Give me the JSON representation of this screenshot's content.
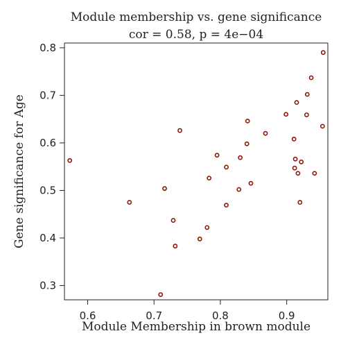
{
  "chart_data": {
    "type": "scatter",
    "title": "Module membership vs. gene significance",
    "subtitle": "cor = 0.58, p = 4e−04",
    "xlabel": "Module Membership in brown module",
    "ylabel": "Gene significance for Age",
    "xlim": [
      0.565,
      0.962
    ],
    "ylim": [
      0.27,
      0.81
    ],
    "xticks": [
      0.6,
      0.7,
      0.8,
      0.9
    ],
    "xtick_labels": [
      "0.6",
      "0.7",
      "0.8",
      "0.9"
    ],
    "yticks": [
      0.3,
      0.4,
      0.5,
      0.6,
      0.7,
      0.8
    ],
    "ytick_labels": [
      "0.3",
      "0.4",
      "0.5",
      "0.6",
      "0.7",
      "0.8"
    ],
    "grid": false,
    "marker_color": "#8B1A00",
    "points": [
      {
        "x": 0.573,
        "y": 0.563
      },
      {
        "x": 0.663,
        "y": 0.475
      },
      {
        "x": 0.71,
        "y": 0.281
      },
      {
        "x": 0.716,
        "y": 0.504
      },
      {
        "x": 0.729,
        "y": 0.437
      },
      {
        "x": 0.732,
        "y": 0.383
      },
      {
        "x": 0.739,
        "y": 0.626
      },
      {
        "x": 0.769,
        "y": 0.398
      },
      {
        "x": 0.78,
        "y": 0.422
      },
      {
        "x": 0.783,
        "y": 0.526
      },
      {
        "x": 0.795,
        "y": 0.574
      },
      {
        "x": 0.809,
        "y": 0.469
      },
      {
        "x": 0.809,
        "y": 0.549
      },
      {
        "x": 0.828,
        "y": 0.502
      },
      {
        "x": 0.83,
        "y": 0.569
      },
      {
        "x": 0.84,
        "y": 0.598
      },
      {
        "x": 0.841,
        "y": 0.646
      },
      {
        "x": 0.846,
        "y": 0.515
      },
      {
        "x": 0.868,
        "y": 0.62
      },
      {
        "x": 0.899,
        "y": 0.66
      },
      {
        "x": 0.911,
        "y": 0.608
      },
      {
        "x": 0.912,
        "y": 0.547
      },
      {
        "x": 0.913,
        "y": 0.566
      },
      {
        "x": 0.915,
        "y": 0.685
      },
      {
        "x": 0.917,
        "y": 0.536
      },
      {
        "x": 0.92,
        "y": 0.475
      },
      {
        "x": 0.922,
        "y": 0.56
      },
      {
        "x": 0.93,
        "y": 0.659
      },
      {
        "x": 0.931,
        "y": 0.702
      },
      {
        "x": 0.937,
        "y": 0.737
      },
      {
        "x": 0.942,
        "y": 0.536
      },
      {
        "x": 0.954,
        "y": 0.635
      },
      {
        "x": 0.955,
        "y": 0.79
      }
    ]
  }
}
